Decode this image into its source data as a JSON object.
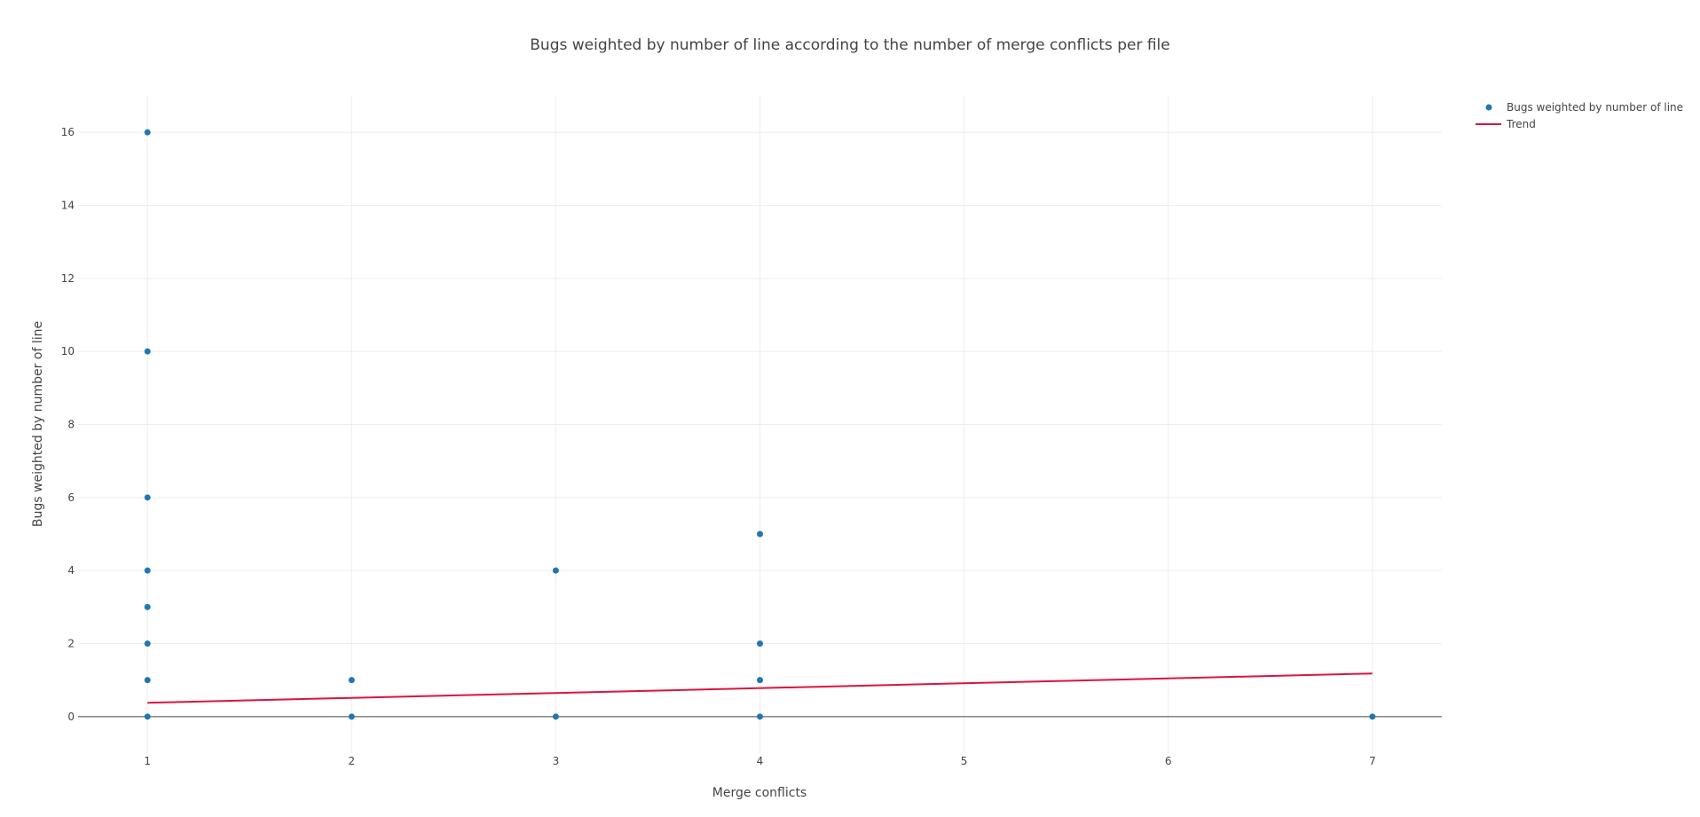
{
  "chart_data": {
    "type": "scatter",
    "title": "Bugs weighted by number of line according to the number of merge conflicts per file",
    "xlabel": "Merge conflicts",
    "ylabel": "Bugs weighted by number of line",
    "xlim": [
      0.66,
      7.34
    ],
    "ylim": [
      -1,
      17
    ],
    "xticks": [
      1,
      2,
      3,
      4,
      5,
      6,
      7
    ],
    "yticks": [
      0,
      2,
      4,
      6,
      8,
      10,
      12,
      14,
      16
    ],
    "grid": true,
    "legend": "top-right",
    "series": [
      {
        "name": "Bugs weighted by number of line",
        "mode": "markers",
        "color": "#1f77b4",
        "points": [
          {
            "x": 1,
            "y": 16
          },
          {
            "x": 1,
            "y": 10
          },
          {
            "x": 1,
            "y": 6
          },
          {
            "x": 1,
            "y": 4
          },
          {
            "x": 1,
            "y": 3
          },
          {
            "x": 1,
            "y": 2
          },
          {
            "x": 1,
            "y": 1
          },
          {
            "x": 1,
            "y": 0
          },
          {
            "x": 2,
            "y": 1
          },
          {
            "x": 2,
            "y": 0
          },
          {
            "x": 3,
            "y": 4
          },
          {
            "x": 3,
            "y": 0
          },
          {
            "x": 4,
            "y": 5
          },
          {
            "x": 4,
            "y": 2
          },
          {
            "x": 4,
            "y": 1
          },
          {
            "x": 4,
            "y": 0
          },
          {
            "x": 7,
            "y": 0
          }
        ]
      },
      {
        "name": "Trend",
        "mode": "lines",
        "color": "#dc143c",
        "points": [
          {
            "x": 1,
            "y": 0.38
          },
          {
            "x": 7,
            "y": 1.18
          }
        ]
      }
    ]
  }
}
